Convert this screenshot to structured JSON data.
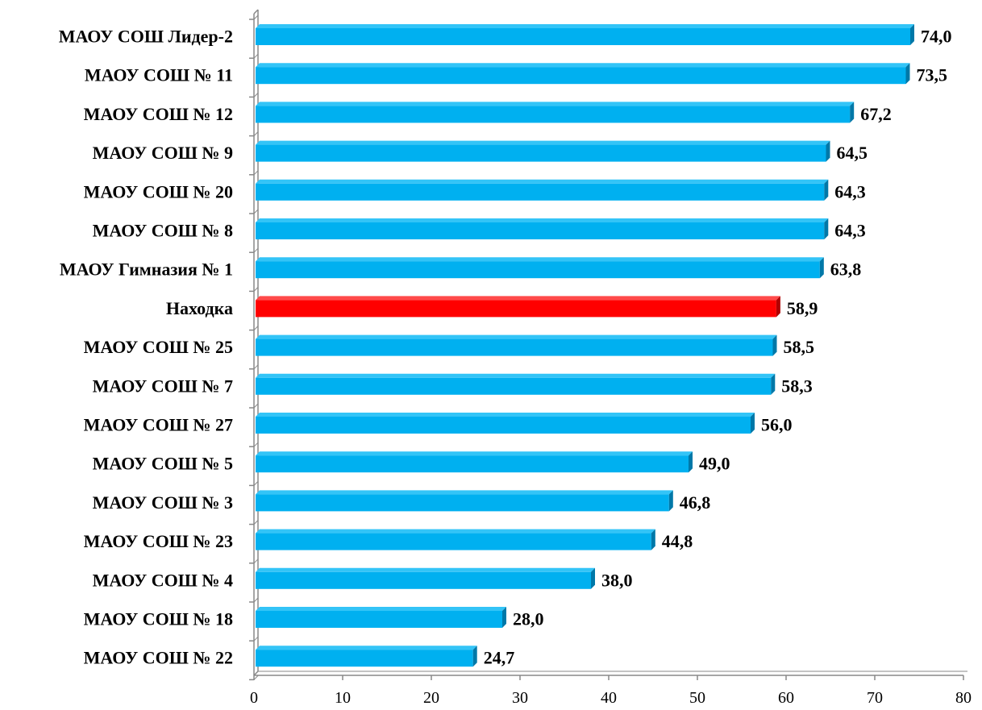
{
  "chart_data": {
    "type": "bar",
    "orientation": "horizontal",
    "categories": [
      "МАОУ СОШ Лидер-2",
      "МАОУ СОШ № 11",
      "МАОУ СОШ № 12",
      "МАОУ СОШ № 9",
      "МАОУ СОШ № 20",
      "МАОУ СОШ № 8",
      "МАОУ Гимназия № 1",
      "Находка",
      "МАОУ СОШ № 25",
      "МАОУ СОШ № 7",
      "МАОУ СОШ № 27",
      "МАОУ СОШ № 5",
      "МАОУ СОШ № 3",
      "МАОУ СОШ № 23",
      "МАОУ СОШ № 4",
      "МАОУ СОШ № 18",
      "МАОУ СОШ № 22"
    ],
    "values": [
      74.0,
      73.5,
      67.2,
      64.5,
      64.3,
      64.3,
      63.8,
      58.9,
      58.5,
      58.3,
      56.0,
      49.0,
      46.8,
      44.8,
      38.0,
      28.0,
      24.7
    ],
    "value_labels": [
      "74,0",
      "73,5",
      "67,2",
      "64,5",
      "64,3",
      "64,3",
      "63,8",
      "58,9",
      "58,5",
      "58,3",
      "56,0",
      "49,0",
      "46,8",
      "44,8",
      "38,0",
      "28,0",
      "24,7"
    ],
    "x_ticks": [
      "0",
      "10",
      "20",
      "30",
      "40",
      "50",
      "60",
      "70",
      "80"
    ],
    "xlim": [
      0,
      80
    ],
    "highlight_category": "Находка",
    "colors": {
      "bar": "#00B0F0",
      "bar_top": "#33C4F7",
      "bar_side": "#0078A8",
      "highlight": "#FF0000",
      "highlight_top": "#FF4A4A",
      "highlight_side": "#B00000",
      "axis": "#888888"
    },
    "title": "",
    "xlabel": "",
    "ylabel": "",
    "grid": false,
    "style": "3d"
  }
}
